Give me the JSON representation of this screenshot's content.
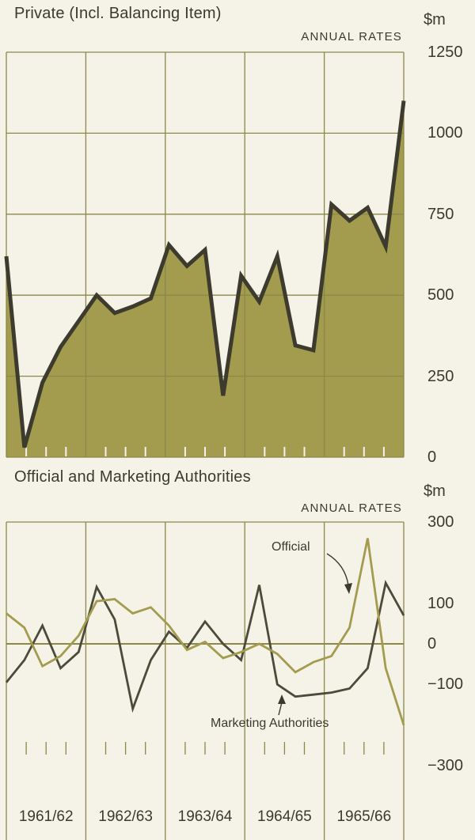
{
  "colors": {
    "background": "#f5f2e7",
    "olive_fill": "#a39c4f",
    "grid": "#8b8848",
    "dark_line": "#3c3b2d",
    "marketing_line": "#4c4a38",
    "text": "#3b3a2e"
  },
  "chart_data": [
    {
      "type": "area",
      "title": "Private (Incl. Balancing Item)",
      "note": "ANNUAL RATES",
      "ylabel": "$m",
      "ylim": [
        0,
        1250
      ],
      "yticks": [
        1250,
        1000,
        750,
        500,
        250,
        0
      ],
      "grid": true,
      "x_years": [
        "1961/62",
        "1962/63",
        "1963/64",
        "1964/65",
        "1965/66"
      ],
      "values": [
        620,
        30,
        230,
        340,
        420,
        500,
        445,
        465,
        490,
        655,
        590,
        640,
        190,
        560,
        480,
        620,
        345,
        330,
        780,
        730,
        770,
        650,
        1100
      ]
    },
    {
      "type": "line",
      "title": "Official and Marketing Authorities",
      "note": "ANNUAL RATES",
      "ylabel": "$m",
      "ylim": [
        -300,
        300
      ],
      "yticks": [
        300,
        100,
        0,
        -100,
        -300
      ],
      "grid": false,
      "x_years": [
        "1961/62",
        "1962/63",
        "1963/64",
        "1964/65",
        "1965/66"
      ],
      "series": [
        {
          "name": "Official",
          "values": [
            75,
            40,
            -55,
            -30,
            20,
            105,
            110,
            75,
            90,
            45,
            -15,
            5,
            -35,
            -20,
            0,
            -25,
            -70,
            -45,
            -30,
            40,
            260,
            -60,
            -200
          ]
        },
        {
          "name": "Marketing Authorities",
          "values": [
            -95,
            -40,
            45,
            -60,
            -20,
            140,
            60,
            -160,
            -40,
            30,
            -10,
            55,
            0,
            -40,
            145,
            -100,
            -130,
            -125,
            -120,
            -110,
            -60,
            150,
            70
          ]
        }
      ],
      "annotations": [
        {
          "text": "Official"
        },
        {
          "text": "Marketing Authorities"
        }
      ]
    }
  ]
}
